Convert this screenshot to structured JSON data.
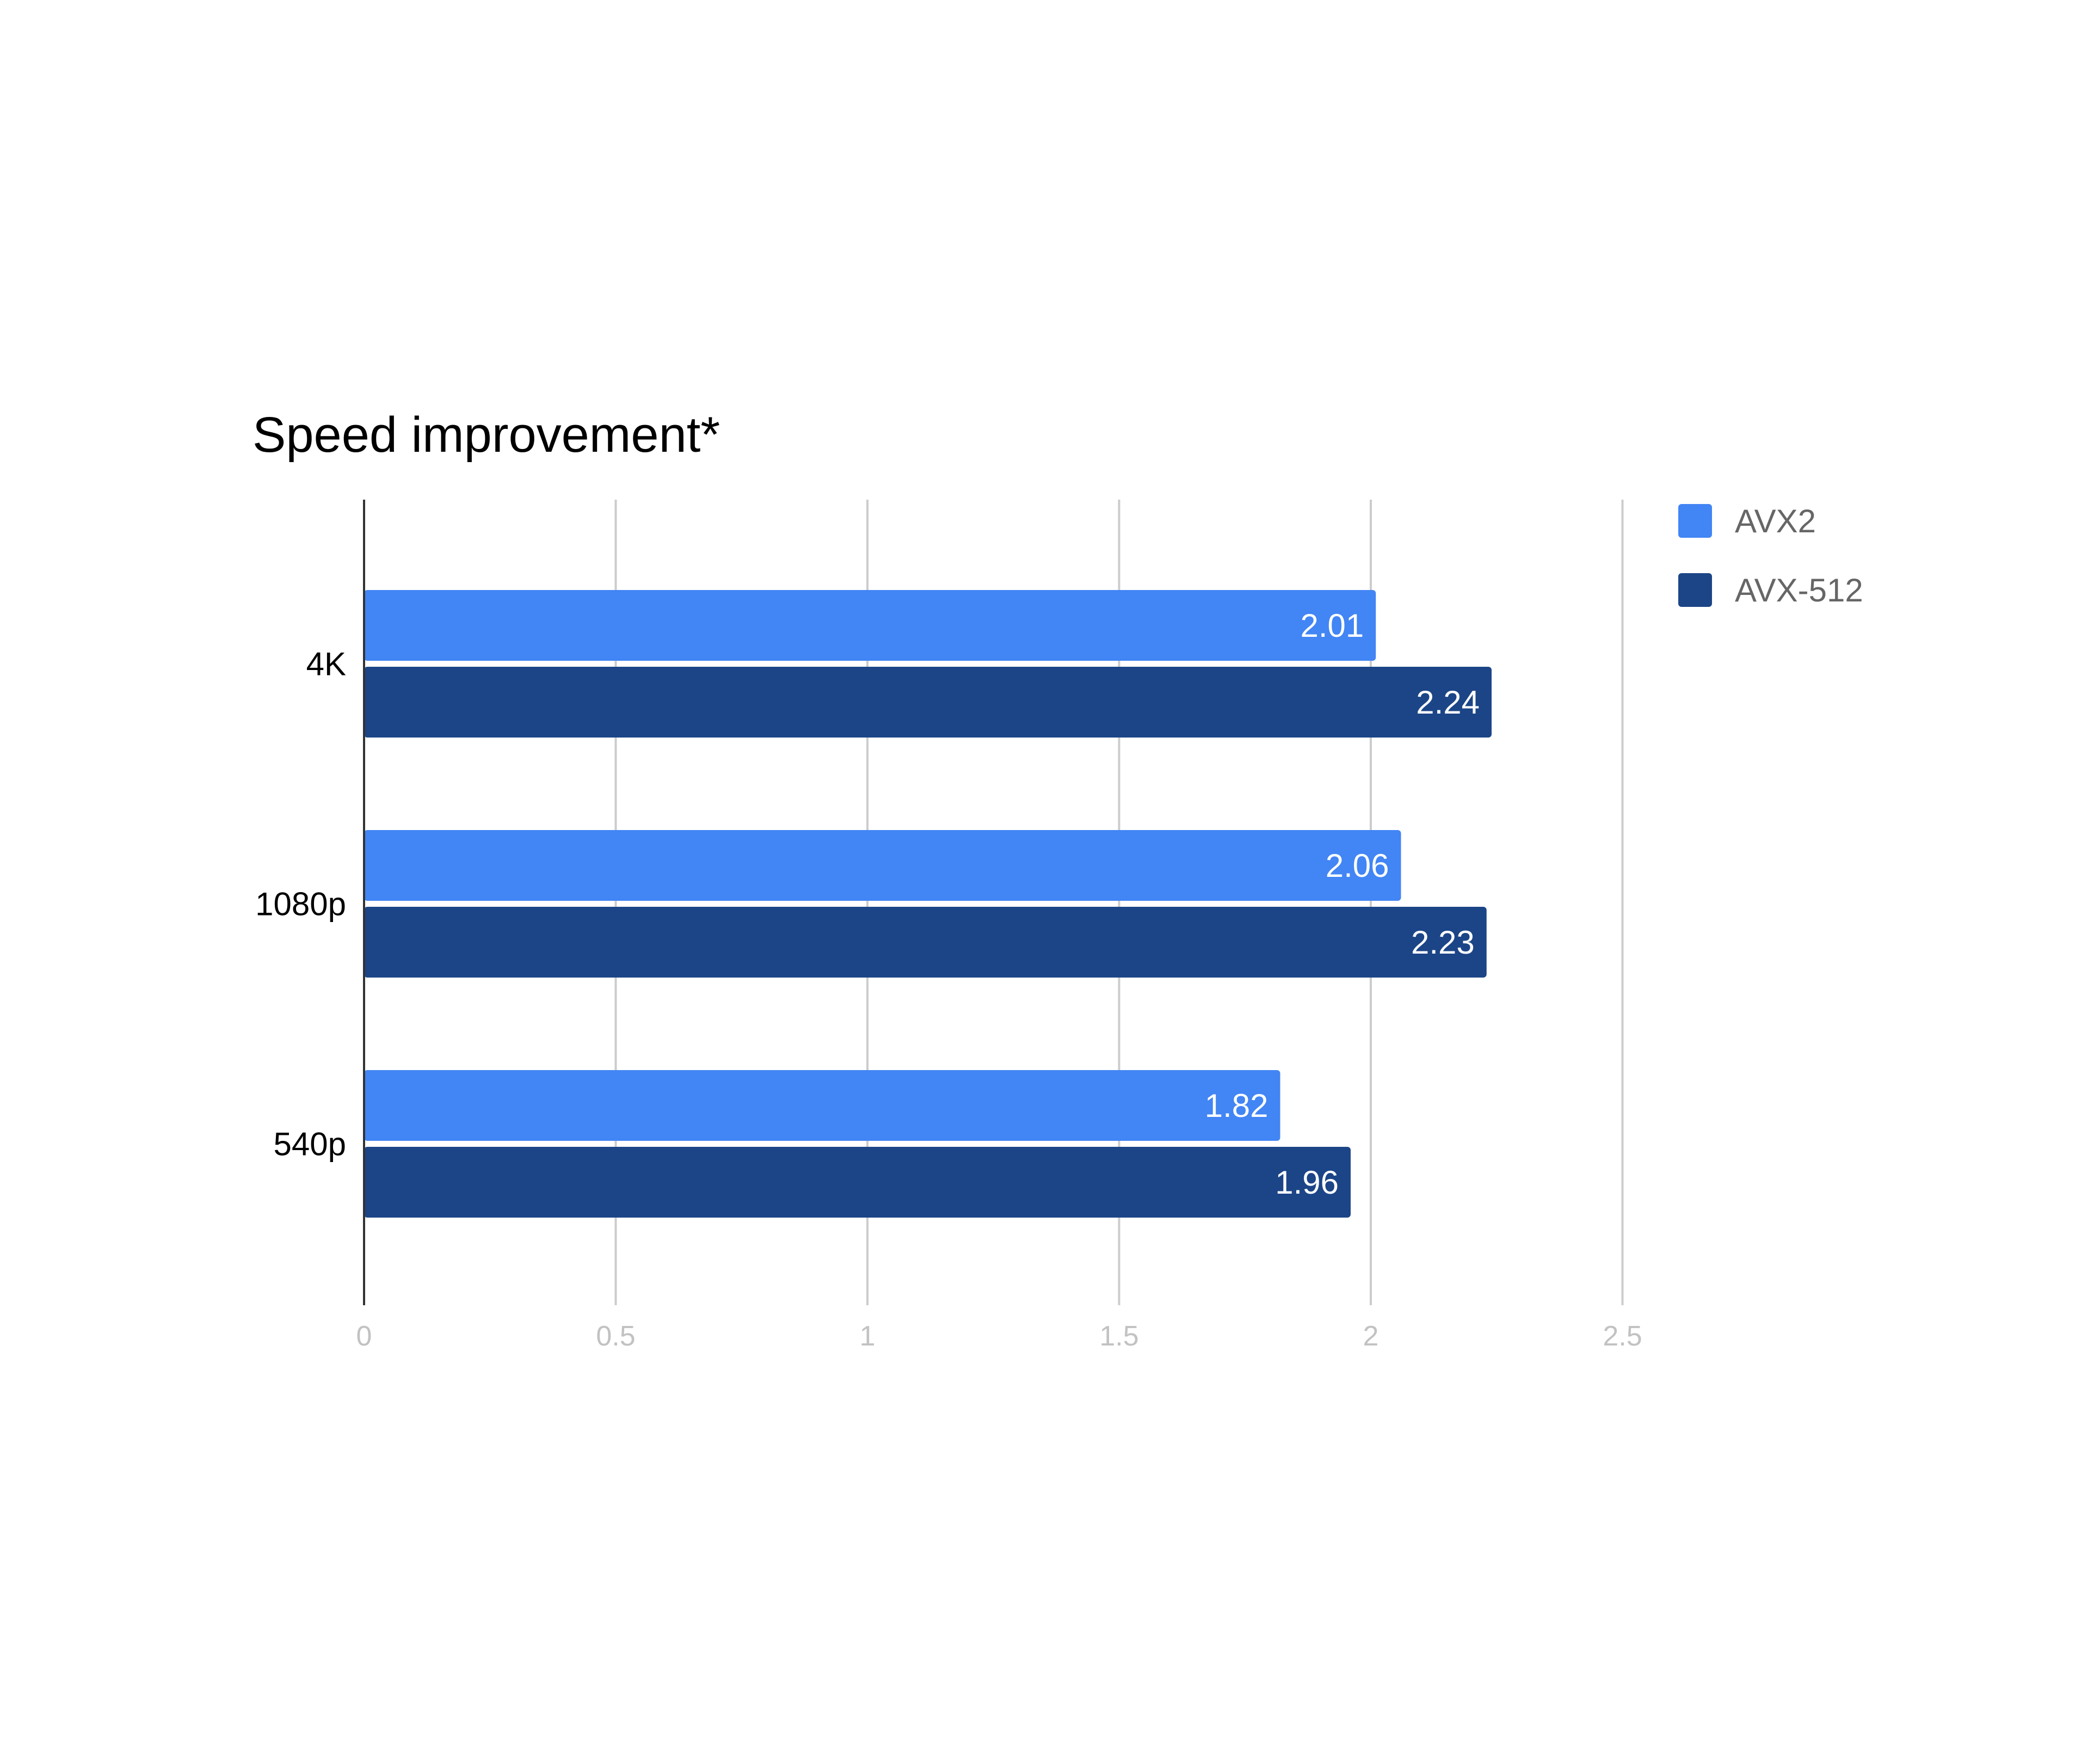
{
  "chart_data": {
    "type": "bar",
    "orientation": "horizontal",
    "title": "Speed improvement*",
    "categories": [
      "4K",
      "1080p",
      "540p"
    ],
    "series": [
      {
        "name": "AVX2",
        "color": "#4285f4",
        "values": [
          2.01,
          2.06,
          1.82
        ]
      },
      {
        "name": "AVX-512",
        "color": "#1c4587",
        "values": [
          2.24,
          2.23,
          1.96
        ]
      }
    ],
    "xlim": [
      0,
      2.5
    ],
    "xticks": [
      "0",
      "0.5",
      "1",
      "1.5",
      "2",
      "2.5"
    ],
    "grid": true,
    "data_labels": true,
    "legend": "top-right"
  }
}
